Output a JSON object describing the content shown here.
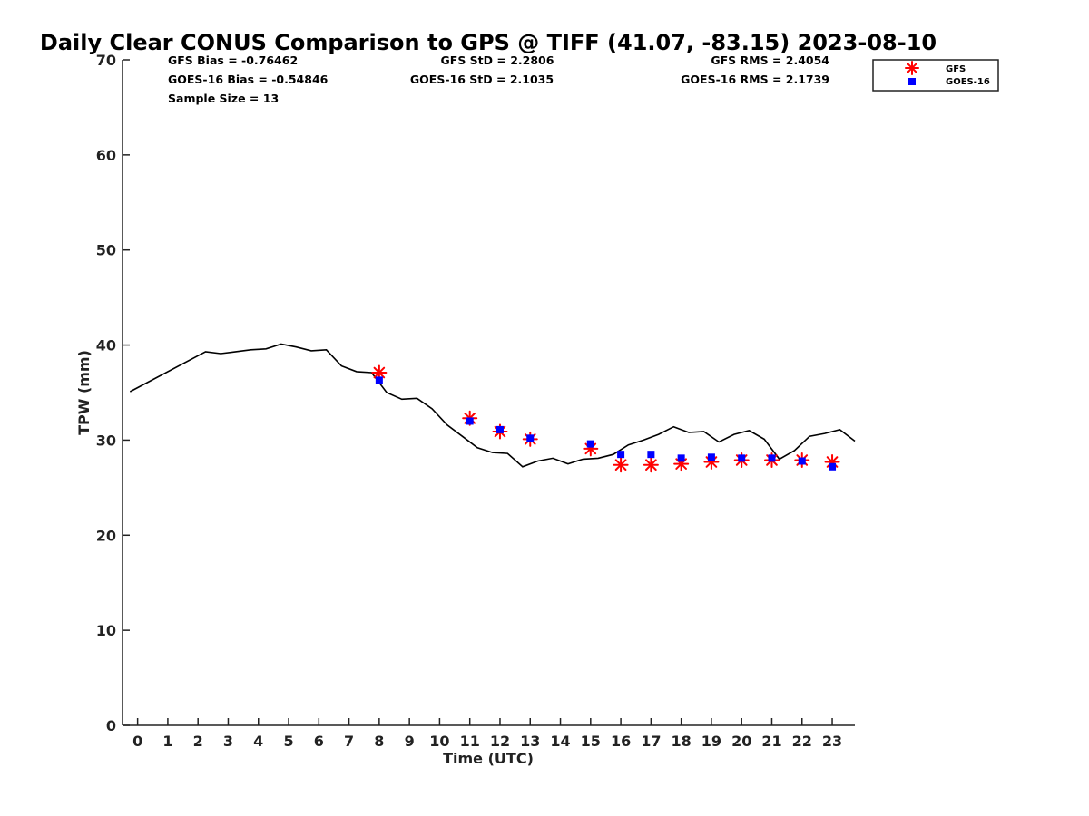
{
  "chart_data": {
    "type": "line",
    "title": "Daily Clear CONUS Comparison to GPS @ TIFF (41.07, -83.15) 2023-08-10",
    "xlabel": "Time (UTC)",
    "ylabel": "TPW (mm)",
    "xlim": [
      -0.5,
      23.75
    ],
    "ylim": [
      0,
      70
    ],
    "x_ticks": [
      0,
      1,
      2,
      3,
      4,
      5,
      6,
      7,
      8,
      9,
      10,
      11,
      12,
      13,
      14,
      15,
      16,
      17,
      18,
      19,
      20,
      21,
      22,
      23
    ],
    "y_ticks": [
      0,
      10,
      20,
      30,
      40,
      50,
      60,
      70
    ],
    "grid": false,
    "legend_position": "top-right",
    "stats": {
      "gfs_bias": "GFS Bias = -0.76462",
      "goes_bias": "GOES-16 Bias = -0.54846",
      "sample_size": "Sample Size = 13",
      "gfs_std": "GFS StD = 2.2806",
      "goes_std": "GOES-16 StD = 2.1035",
      "gfs_rms": "GFS RMS = 2.4054",
      "goes_rms": "GOES-16 RMS = 2.1739"
    },
    "gps_line": {
      "color": "#000000",
      "x": [
        -0.25,
        2.25,
        2.75,
        3.25,
        3.75,
        4.25,
        4.75,
        5.25,
        5.75,
        6.25,
        6.75,
        7.25,
        7.75,
        8.25,
        8.75,
        9.25,
        9.75,
        10.25,
        10.75,
        11.25,
        11.75,
        12.25,
        12.75,
        13.25,
        13.75,
        14.25,
        14.75,
        15.25,
        15.75,
        16.25,
        16.75,
        17.25,
        17.75,
        18.25,
        18.75,
        19.25,
        19.75,
        20.25,
        20.75,
        21.25,
        21.75,
        22.25,
        22.75,
        23.25,
        23.75
      ],
      "y": [
        35.1,
        39.3,
        39.1,
        39.3,
        39.5,
        39.6,
        40.1,
        39.8,
        39.4,
        39.5,
        37.8,
        37.2,
        37.1,
        35.0,
        34.3,
        34.4,
        33.3,
        31.6,
        30.4,
        29.2,
        28.7,
        28.6,
        27.2,
        27.8,
        28.1,
        27.5,
        28.0,
        28.1,
        28.5,
        29.5,
        30.0,
        30.6,
        31.4,
        30.8,
        30.9,
        29.8,
        30.6,
        31.0,
        30.1,
        28.0,
        28.9,
        30.4,
        30.7,
        31.1,
        29.9
      ]
    },
    "series": [
      {
        "name": "GFS",
        "color": "#ff0000",
        "marker": "asterisk",
        "x": [
          8,
          11,
          12,
          13,
          15,
          16,
          17,
          18,
          19,
          20,
          21,
          22,
          23
        ],
        "y": [
          37.1,
          32.3,
          30.9,
          30.1,
          29.1,
          27.4,
          27.4,
          27.5,
          27.7,
          27.9,
          27.9,
          27.9,
          27.7
        ]
      },
      {
        "name": "GOES-16",
        "color": "#0000ff",
        "marker": "square",
        "x": [
          8,
          11,
          12,
          13,
          15,
          16,
          17,
          18,
          19,
          20,
          21,
          22,
          23
        ],
        "y": [
          36.3,
          32.0,
          31.1,
          30.2,
          29.6,
          28.5,
          28.5,
          28.1,
          28.2,
          28.1,
          28.1,
          27.8,
          27.2
        ]
      }
    ]
  }
}
